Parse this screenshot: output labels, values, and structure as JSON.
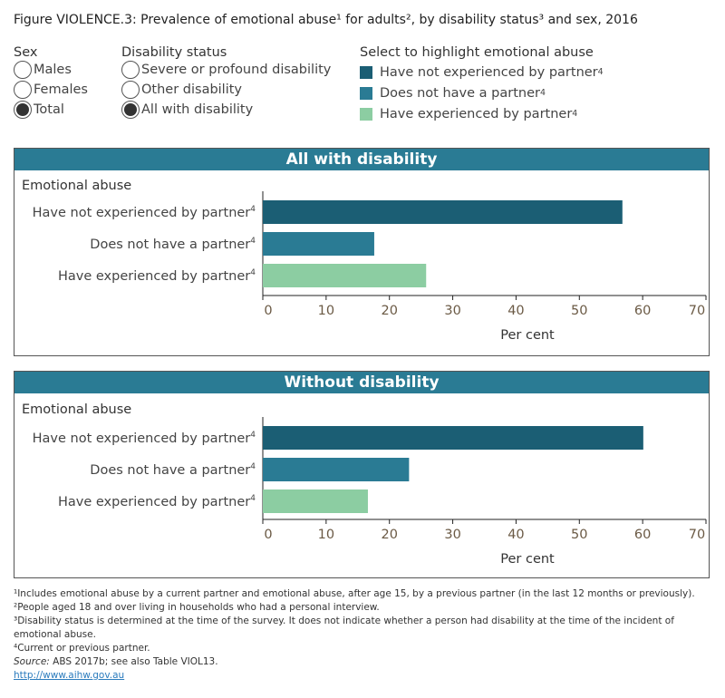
{
  "title": "Figure VIOLENCE.3: Prevalence of emotional abuse¹ for adults², by disability status³ and sex, 2016",
  "filters": {
    "sex": {
      "label": "Sex",
      "options": [
        {
          "label": "Males",
          "selected": false
        },
        {
          "label": "Females",
          "selected": false
        },
        {
          "label": "Total",
          "selected": true
        }
      ]
    },
    "disability": {
      "label": "Disability status",
      "options": [
        {
          "label": "Severe or profound disability",
          "selected": false
        },
        {
          "label": "Other disability",
          "selected": false
        },
        {
          "label": "All with disability",
          "selected": true
        }
      ]
    },
    "highlight": {
      "label": "Select to highlight emotional abuse",
      "items": [
        {
          "label": "Have not experienced by partner",
          "sup": "4",
          "color": "#1b5e74"
        },
        {
          "label": "Does not have a partner",
          "sup": "4",
          "color": "#2a7b94"
        },
        {
          "label": "Have experienced by partner",
          "sup": "4",
          "color": "#8ccda2"
        }
      ]
    }
  },
  "chart_data": [
    {
      "type": "bar",
      "title": "All with disability",
      "ylabel": "Emotional abuse",
      "xlabel": "Per cent",
      "xlim": [
        0,
        70
      ],
      "ticks": [
        "0",
        "10",
        "20",
        "30",
        "40",
        "50",
        "60",
        "70"
      ],
      "categories": [
        "Have not experienced by partner",
        "Does not have a partner",
        "Have experienced by partner"
      ],
      "category_sup": "4",
      "values": [
        56.8,
        17.6,
        25.8
      ],
      "colors": [
        "#1b5e74",
        "#2a7b94",
        "#8ccda2"
      ]
    },
    {
      "type": "bar",
      "title": "Without disability",
      "ylabel": "Emotional abuse",
      "xlabel": "Per cent",
      "xlim": [
        0,
        70
      ],
      "ticks": [
        "0",
        "10",
        "20",
        "30",
        "40",
        "50",
        "60",
        "70"
      ],
      "categories": [
        "Have not experienced by partner",
        "Does not have a partner",
        "Have experienced by partner"
      ],
      "category_sup": "4",
      "values": [
        60.1,
        23.1,
        16.6
      ],
      "colors": [
        "#1b5e74",
        "#2a7b94",
        "#8ccda2"
      ]
    }
  ],
  "footnotes": {
    "n1": "¹Includes emotional abuse by a current partner and emotional abuse, after age 15, by a previous partner (in the last 12 months or previously).",
    "n2": "²People aged 18 and over living in households who had a personal interview.",
    "n3": "³Disability status is determined at the time of the survey. It does not indicate whether a person had disability at the time of the incident of emotional abuse.",
    "n4": "⁴Current or previous partner.",
    "source_label": "Source:",
    "source": " ABS 2017b; see also Table VIOL13.",
    "link": "http://www.aihw.gov.au"
  }
}
